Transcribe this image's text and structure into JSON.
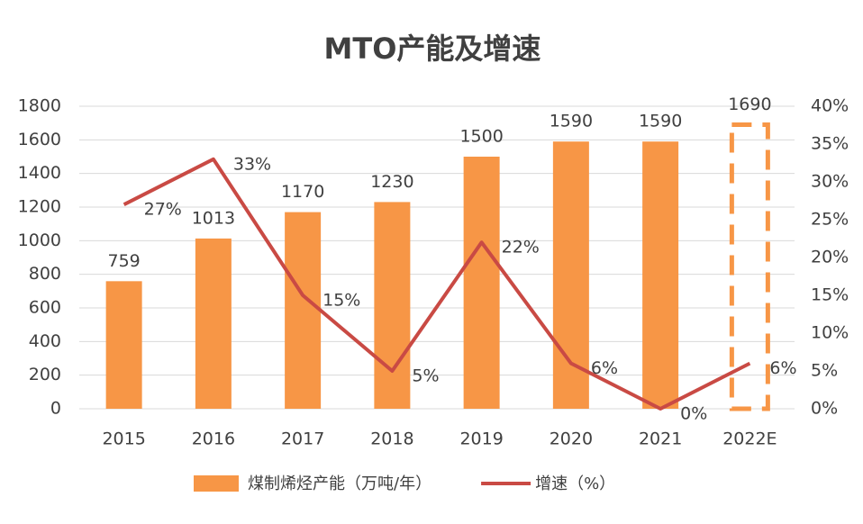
{
  "chart_data": {
    "type": "combo",
    "title": "MTO产能及增速",
    "categories": [
      "2015",
      "2016",
      "2017",
      "2018",
      "2019",
      "2020",
      "2021",
      "2022E"
    ],
    "series": [
      {
        "name": "煤制烯烃产能（万吨/年）",
        "type": "bar",
        "color": "#f79646",
        "values": [
          759,
          1013,
          1170,
          1230,
          1500,
          1590,
          1590,
          1690
        ],
        "dashed_indices": [
          7
        ]
      },
      {
        "name": "增速（%）",
        "type": "line",
        "axis": "y2",
        "color": "#c94a44",
        "values": [
          27,
          33,
          15,
          5,
          22,
          6,
          0,
          6
        ],
        "value_labels": [
          "27%",
          "33%",
          "15%",
          "5%",
          "22%",
          "6%",
          "0%",
          "6%"
        ]
      }
    ],
    "ylim": [
      0,
      1800
    ],
    "yticks": [
      0,
      200,
      400,
      600,
      800,
      1000,
      1200,
      1400,
      1600,
      1800
    ],
    "y2lim": [
      0,
      40
    ],
    "y2ticks": [
      {
        "value": 0,
        "label": "0%"
      },
      {
        "value": 5,
        "label": "5%"
      },
      {
        "value": 10,
        "label": "10%"
      },
      {
        "value": 15,
        "label": "15%"
      },
      {
        "value": 20,
        "label": "20%"
      },
      {
        "value": 25,
        "label": "25%"
      },
      {
        "value": 30,
        "label": "30%"
      },
      {
        "value": 35,
        "label": "35%"
      },
      {
        "value": 40,
        "label": "40%"
      }
    ],
    "grid": true,
    "legend": "bottom"
  }
}
